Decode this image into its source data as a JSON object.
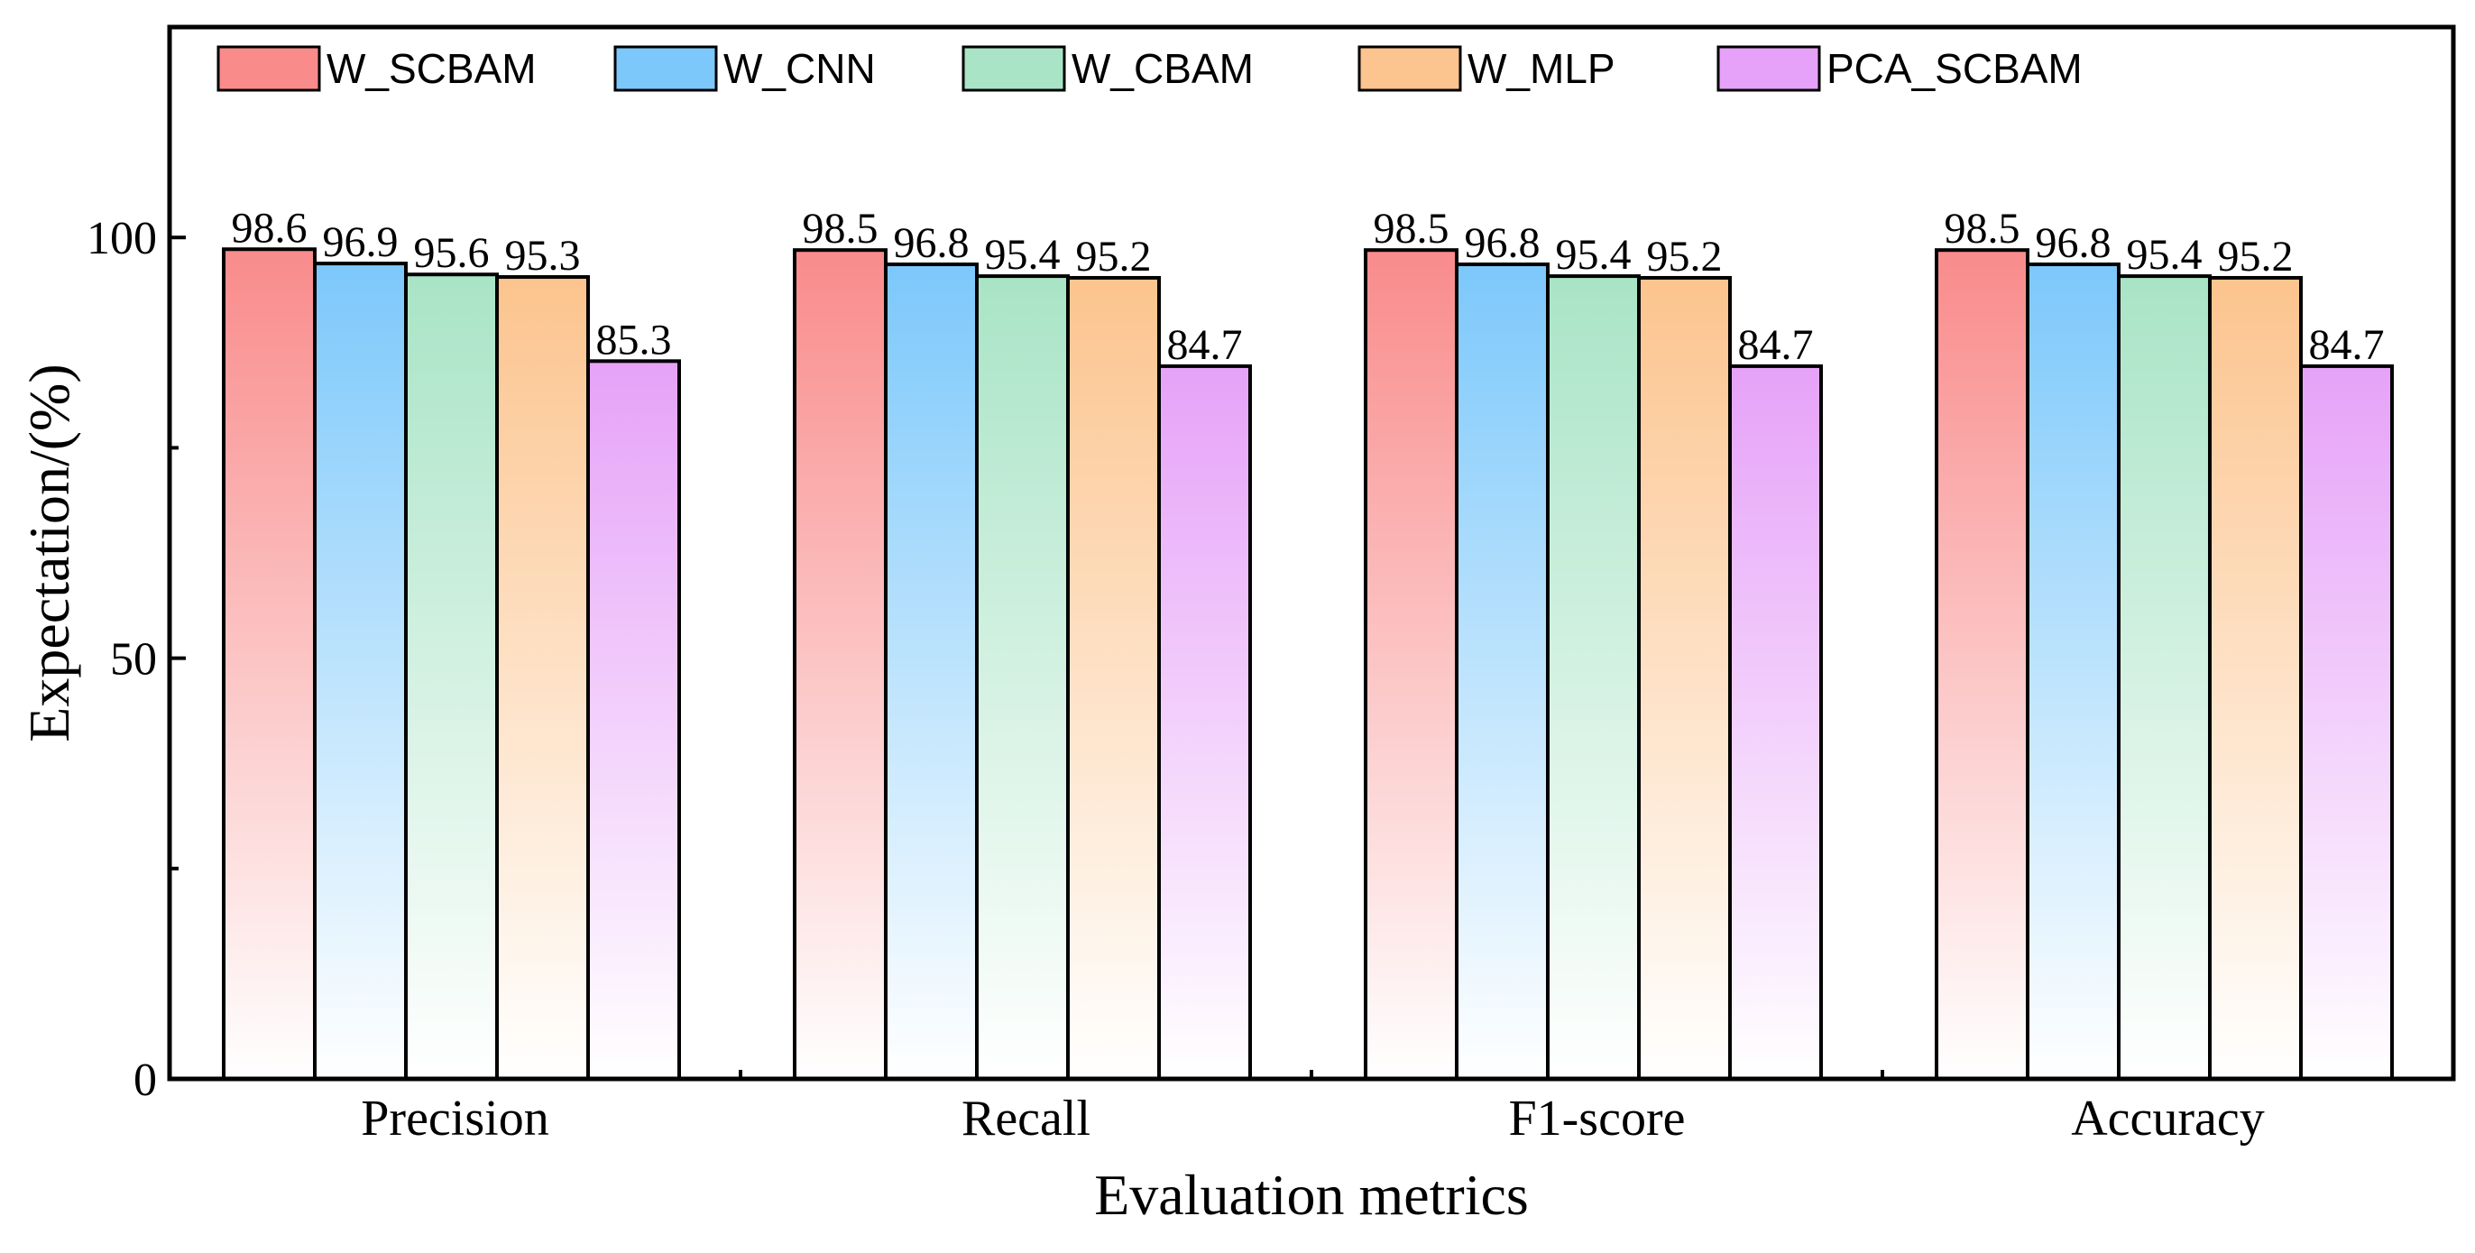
{
  "chart_data": {
    "type": "bar",
    "title": "",
    "xlabel": "Evaluation metrics",
    "ylabel": "Expectation/(%)",
    "ylim": [
      0,
      125
    ],
    "yticks": [
      0,
      50,
      100
    ],
    "ytick_labels": [
      "0",
      "50",
      "100"
    ],
    "grid": false,
    "legend_position": "top",
    "categories": [
      "Precision",
      "Recall",
      "F1-score",
      "Accuracy"
    ],
    "series": [
      {
        "name": "W_SCBAM",
        "color": "#f98b8b",
        "values": [
          98.6,
          98.5,
          98.5,
          98.5
        ],
        "labels": [
          "98.6",
          "98.5",
          "98.5",
          "98.5"
        ]
      },
      {
        "name": "W_CNN",
        "color": "#7cc8fb",
        "values": [
          96.9,
          96.8,
          96.8,
          96.8
        ],
        "labels": [
          "96.9",
          "96.8",
          "96.8",
          "96.8"
        ]
      },
      {
        "name": "W_CBAM",
        "color": "#a9e4c6",
        "values": [
          95.6,
          95.4,
          95.4,
          95.4
        ],
        "labels": [
          "95.6",
          "95.4",
          "95.4",
          "95.4"
        ]
      },
      {
        "name": "W_MLP",
        "color": "#fcc48e",
        "values": [
          95.3,
          95.2,
          95.2,
          95.2
        ],
        "labels": [
          "95.3",
          "95.2",
          "95.2",
          "95.2"
        ]
      },
      {
        "name": "PCA_SCBAM",
        "color": "#e6a2f8",
        "values": [
          85.3,
          84.7,
          84.7,
          84.7
        ],
        "labels": [
          "85.3",
          "84.7",
          "84.7",
          "84.7"
        ]
      }
    ]
  }
}
